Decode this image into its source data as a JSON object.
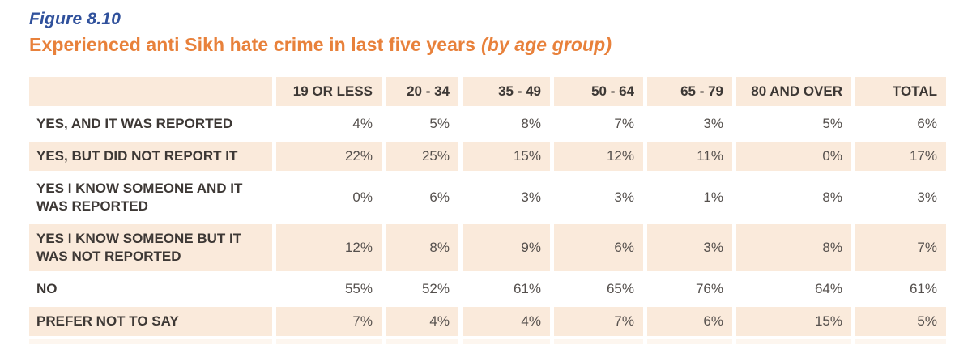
{
  "figure_label": "Figure 8.10",
  "title": "Experienced anti Sikh hate crime in  last five years",
  "title_suffix": "(by age group)",
  "colors": {
    "figure_label_blue": "#30519c",
    "title_orange": "#e8813b",
    "row_peach": "#faeadb",
    "label_text": "#3d3835",
    "value_text": "#55504d"
  },
  "chart_data": {
    "type": "table",
    "title": "Experienced anti Sikh hate crime in last five years (by age group)",
    "columns": [
      "19 OR LESS",
      "20 - 34",
      "35 - 49",
      "50 - 64",
      "65 - 79",
      "80 AND OVER",
      "TOTAL"
    ],
    "rows": [
      {
        "label_lines": [
          "YES, AND IT WAS REPORTED"
        ],
        "values": [
          "4%",
          "5%",
          "8%",
          "7%",
          "3%",
          "5%",
          "6%"
        ]
      },
      {
        "label_lines": [
          "YES, BUT DID NOT REPORT IT"
        ],
        "values": [
          "22%",
          "25%",
          "15%",
          "12%",
          "11%",
          "0%",
          "17%"
        ]
      },
      {
        "label_lines": [
          "YES I KNOW SOMEONE AND IT",
          "WAS REPORTED"
        ],
        "values": [
          "0%",
          "6%",
          "3%",
          "3%",
          "1%",
          "8%",
          "3%"
        ]
      },
      {
        "label_lines": [
          "YES I KNOW SOMEONE BUT IT",
          "WAS NOT REPORTED"
        ],
        "values": [
          "12%",
          "8%",
          "9%",
          "6%",
          "3%",
          "8%",
          "7%"
        ]
      },
      {
        "label_lines": [
          "NO"
        ],
        "values": [
          "55%",
          "52%",
          "61%",
          "65%",
          "76%",
          "64%",
          "61%"
        ]
      },
      {
        "label_lines": [
          "PREFER NOT TO SAY"
        ],
        "values": [
          "7%",
          "4%",
          "4%",
          "7%",
          "6%",
          "15%",
          "5%"
        ]
      }
    ]
  }
}
